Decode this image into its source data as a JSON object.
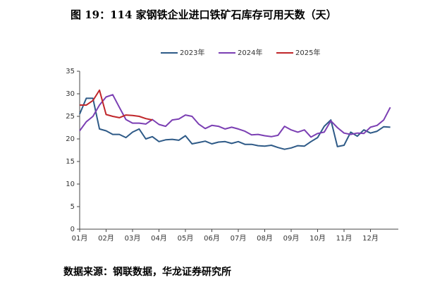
{
  "chart_data": {
    "type": "line",
    "title": "图 19：114 家钢铁企业进口铁矿石库存可用天数（天）",
    "source": "数据来源：钢联数据，华龙证券研究所",
    "categories": [
      "01月",
      null,
      null,
      null,
      "02月",
      null,
      null,
      null,
      "03月",
      null,
      null,
      null,
      "04月",
      null,
      null,
      null,
      "05月",
      null,
      null,
      null,
      "06月",
      null,
      null,
      null,
      "07月",
      null,
      null,
      null,
      "08月",
      null,
      null,
      null,
      "09月",
      null,
      null,
      null,
      "10月",
      null,
      null,
      null,
      "11月",
      null,
      null,
      null,
      "12月",
      null,
      null,
      null
    ],
    "series": [
      {
        "name": "2023年",
        "color": "#2e5a87",
        "values": [
          25.5,
          29,
          29,
          22.2,
          21.8,
          21,
          21,
          20.3,
          21.5,
          22.2,
          20,
          20.5,
          19.4,
          19.8,
          19.9,
          19.7,
          20.7,
          18.9,
          19.2,
          19.5,
          18.9,
          19.3,
          19.4,
          19,
          19.4,
          18.8,
          18.8,
          18.5,
          18.4,
          18.6,
          18.1,
          17.7,
          18,
          18.5,
          18.4,
          19.4,
          20.3,
          22.8,
          24.2,
          18.3,
          18.6,
          21.5,
          20.6,
          22,
          21.3,
          21.7,
          22.7,
          22.6
        ]
      },
      {
        "name": "2024年",
        "color": "#7b3fb3",
        "values": [
          21.8,
          23.8,
          25,
          27.5,
          29.3,
          29.8,
          27,
          24.3,
          23.5,
          23.5,
          23.3,
          24.3,
          23.2,
          22.8,
          24.2,
          24.4,
          25.3,
          25,
          23.3,
          22.3,
          23,
          22.8,
          22.2,
          22.6,
          22.2,
          21.7,
          20.9,
          21,
          20.7,
          20.5,
          20.8,
          22.8,
          22,
          21.5,
          22,
          20.4,
          21.2,
          21.5,
          24,
          22.5,
          21.3,
          21,
          21.3,
          21.2,
          22.6,
          23,
          24.2,
          27
        ]
      },
      {
        "name": "2025年",
        "color": "#c0262a",
        "values": [
          27.5,
          27.5,
          28.5,
          30.8,
          25.4,
          25,
          24.7,
          25.3,
          25.2,
          25,
          24.5,
          24.2,
          null,
          null,
          null,
          null,
          null,
          null,
          null,
          null,
          null,
          null,
          null,
          null,
          null,
          null,
          null,
          null,
          null,
          null,
          null,
          null,
          null,
          null,
          null,
          null,
          null,
          null,
          null,
          null,
          null,
          null,
          null,
          null,
          null,
          null,
          null,
          null
        ]
      }
    ],
    "ylim": [
      0,
      35
    ],
    "yticks": [
      0,
      5,
      10,
      15,
      20,
      25,
      30,
      35
    ],
    "grid": false,
    "legend": "top"
  }
}
